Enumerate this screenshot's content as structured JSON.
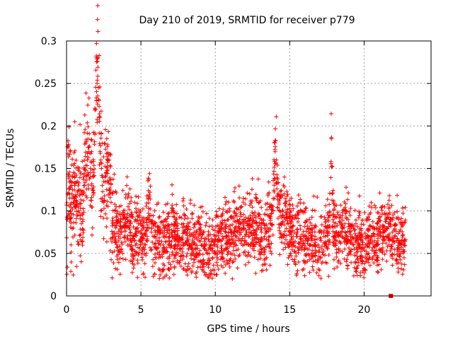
{
  "chart_data": {
    "type": "scatter",
    "title": "Day 210 of 2019, SRMTID for receiver p779",
    "xlabel": "GPS time / hours",
    "ylabel": "SRMTID / TECUs",
    "xlim": [
      0,
      24.5
    ],
    "ylim": [
      0,
      0.3
    ],
    "x_ticks": [
      0,
      5,
      10,
      15,
      20
    ],
    "x_tick_labels": [
      "0",
      "5",
      "10",
      "15",
      "20"
    ],
    "y_ticks": [
      0,
      0.05,
      0.1,
      0.15,
      0.2,
      0.25,
      0.3
    ],
    "y_tick_labels": [
      "0",
      "0.05",
      "0.1",
      "0.15",
      "0.2",
      "0.25",
      "0.3"
    ],
    "grid": true,
    "marker": "+",
    "marker_color": "#ff0000",
    "series": [
      {
        "name": "SRMTID",
        "x": [
          0.05,
          0.1,
          0.15,
          0.2,
          0.25,
          0.3,
          0.35,
          0.4,
          0.45,
          0.5,
          0.55,
          0.6,
          0.7,
          0.8,
          0.9,
          1.0,
          1.1,
          1.2,
          1.3,
          1.4,
          1.5,
          1.6,
          1.7,
          1.8,
          1.9,
          2.0,
          2.05,
          2.1,
          2.15,
          2.2,
          2.25,
          2.3,
          2.35,
          2.4,
          2.5,
          2.6,
          2.7,
          2.8,
          2.9,
          3.0,
          3.1,
          3.2,
          3.3,
          3.5,
          3.7,
          3.9,
          4.1,
          4.3,
          4.5,
          4.7,
          4.9,
          5.1,
          5.3,
          5.5,
          5.7,
          5.9,
          6.1,
          6.3,
          6.5,
          6.7,
          6.9,
          7.1,
          7.3,
          7.5,
          7.7,
          7.9,
          8.1,
          8.3,
          8.5,
          8.7,
          8.9,
          9.1,
          9.3,
          9.5,
          9.7,
          9.9,
          10.1,
          10.3,
          10.5,
          10.7,
          10.9,
          11.1,
          11.3,
          11.5,
          11.7,
          11.9,
          12.1,
          12.3,
          12.5,
          12.7,
          12.9,
          13.1,
          13.3,
          13.5,
          13.7,
          13.9,
          14.0,
          14.1,
          14.2,
          14.3,
          14.5,
          14.7,
          14.9,
          15.1,
          15.3,
          15.5,
          15.7,
          15.9,
          16.1,
          16.3,
          16.5,
          16.7,
          16.9,
          17.1,
          17.3,
          17.5,
          17.7,
          17.8,
          17.9,
          18.1,
          18.3,
          18.5,
          18.7,
          18.9,
          19.1,
          19.3,
          19.5,
          19.7,
          19.9,
          20.1,
          20.3,
          20.5,
          20.7,
          20.9,
          21.1,
          21.3,
          21.5,
          21.7,
          21.9,
          22.1,
          22.3,
          22.5,
          22.7
        ],
        "y": [
          0.09,
          0.167,
          0.14,
          0.12,
          0.1,
          0.06,
          0.13,
          0.125,
          0.11,
          0.115,
          0.13,
          0.105,
          0.095,
          0.1,
          0.12,
          0.085,
          0.09,
          0.13,
          0.18,
          0.16,
          0.175,
          0.15,
          0.13,
          0.14,
          0.19,
          0.23,
          0.25,
          0.28,
          0.245,
          0.21,
          0.17,
          0.16,
          0.15,
          0.13,
          0.11,
          0.14,
          0.125,
          0.16,
          0.12,
          0.11,
          0.085,
          0.075,
          0.08,
          0.07,
          0.075,
          0.08,
          0.09,
          0.085,
          0.07,
          0.075,
          0.065,
          0.07,
          0.06,
          0.115,
          0.075,
          0.07,
          0.065,
          0.06,
          0.06,
          0.07,
          0.065,
          0.075,
          0.07,
          0.065,
          0.06,
          0.06,
          0.065,
          0.07,
          0.06,
          0.055,
          0.065,
          0.06,
          0.055,
          0.05,
          0.055,
          0.06,
          0.06,
          0.065,
          0.07,
          0.075,
          0.065,
          0.07,
          0.08,
          0.075,
          0.085,
          0.08,
          0.075,
          0.08,
          0.085,
          0.075,
          0.08,
          0.075,
          0.07,
          0.08,
          0.085,
          0.1,
          0.18,
          0.16,
          0.12,
          0.1,
          0.095,
          0.09,
          0.085,
          0.08,
          0.075,
          0.07,
          0.07,
          0.065,
          0.07,
          0.075,
          0.065,
          0.07,
          0.06,
          0.065,
          0.07,
          0.075,
          0.08,
          0.185,
          0.09,
          0.075,
          0.07,
          0.08,
          0.075,
          0.065,
          0.07,
          0.06,
          0.065,
          0.06,
          0.055,
          0.06,
          0.065,
          0.07,
          0.065,
          0.06,
          0.07,
          0.075,
          0.08,
          0.085,
          0.075,
          0.07,
          0.065,
          0.06,
          0.065
        ]
      }
    ],
    "outlier_marker": {
      "x": 21.8,
      "y": 0.0
    }
  }
}
